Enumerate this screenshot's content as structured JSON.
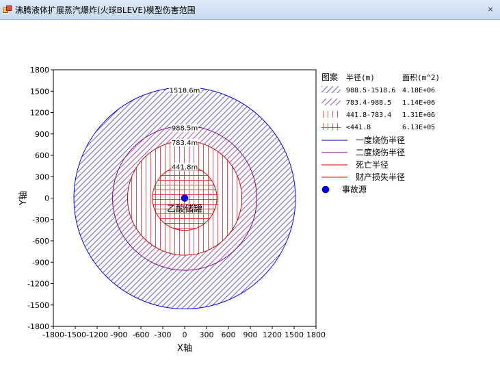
{
  "window": {
    "title": "沸腾液体扩展蒸汽爆炸(火球BLEVE)模型伤害范围",
    "close_glyph": "×"
  },
  "chart_data": {
    "type": "scatter",
    "title": "",
    "xlabel": "X轴",
    "ylabel": "Y轴",
    "xlim": [
      -1800,
      1800
    ],
    "ylim": [
      -1800,
      1800
    ],
    "xticks": [
      -1800,
      -1500,
      -1200,
      -900,
      -600,
      -300,
      0,
      300,
      600,
      900,
      1200,
      1500,
      1800
    ],
    "yticks": [
      -1800,
      -1500,
      -1200,
      -900,
      -600,
      -300,
      0,
      300,
      600,
      900,
      1200,
      1500,
      1800
    ],
    "grid": false,
    "legend_position": "right",
    "source": {
      "x": 0,
      "y": 0,
      "label": "乙酸储罐",
      "color": "#0000ff"
    },
    "zones": [
      {
        "radius": 1518.6,
        "radius_label": "1518.6m",
        "inner": 988.5,
        "pattern": "diag-blue",
        "color": "#0000ff"
      },
      {
        "radius": 988.5,
        "radius_label": "988.5m",
        "inner": 783.4,
        "pattern": "diag-purple",
        "color": "#800080"
      },
      {
        "radius": 783.4,
        "radius_label": "783.4m",
        "inner": 441.8,
        "pattern": "vert-red",
        "color": "#d00000"
      },
      {
        "radius": 441.8,
        "radius_label": "441.8m",
        "inner": 0,
        "pattern": "grid-red",
        "color": "#e00000"
      }
    ],
    "legend": {
      "headers": {
        "pattern": "图案",
        "radius": "半径(m)",
        "area": "面积(m^2)"
      },
      "pattern_rows": [
        {
          "pattern": "diag-blue",
          "range": "988.5-1518.6",
          "area": "4.18E+06"
        },
        {
          "pattern": "diag-purple",
          "range": "783.4-988.5",
          "area": "1.14E+06"
        },
        {
          "pattern": "vert-red",
          "range": "441.8-783.4",
          "area": "1.31E+06"
        },
        {
          "pattern": "grid-red",
          "range": "<441.8",
          "area": "6.13E+05"
        }
      ],
      "line_rows": [
        {
          "label": "一度烧伤半径",
          "color": "#0000cc"
        },
        {
          "label": "二度烧伤半径",
          "color": "#800080"
        },
        {
          "label": "死亡半径",
          "color": "#c00000"
        },
        {
          "label": "财产损失半径",
          "color": "#e00000"
        }
      ],
      "source_label": "事故源"
    }
  }
}
